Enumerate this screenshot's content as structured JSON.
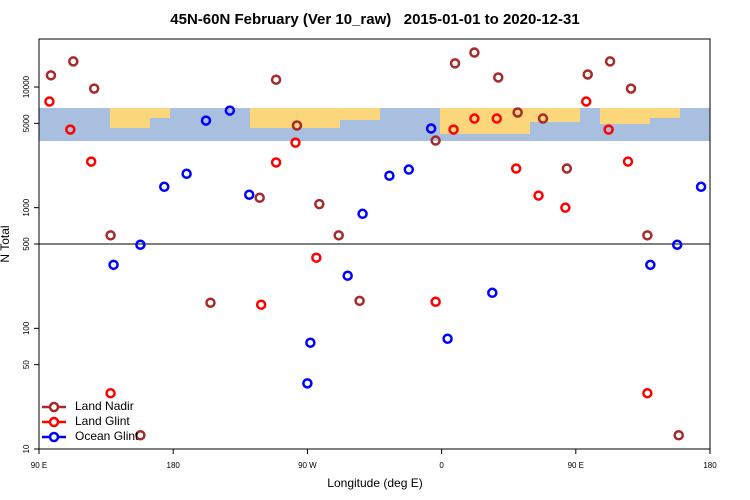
{
  "chart_data": {
    "type": "scatter",
    "title": "45N-60N February (Ver 10_raw)   2015-01-01 to 2020-12-31",
    "x_label": "Longitude (deg E)",
    "y_label": "N Total",
    "log_y": true,
    "xlim": [
      90,
      540
    ],
    "ylim": [
      10,
      25000
    ],
    "xticks": [
      {
        "value": 90,
        "label": "90 E"
      },
      180,
      {
        "value": 270,
        "label": "90 W"
      },
      {
        "value": 360,
        "label": "0"
      },
      {
        "value": 450,
        "label": "90 E"
      },
      {
        "value": 540,
        "label": "180"
      }
    ],
    "yticks": [
      10,
      50,
      100,
      500,
      1000,
      5000,
      10000
    ],
    "hline": 500,
    "legend": "lower left",
    "series": [
      {
        "name": "Land Nadir",
        "color": "#a52a2a",
        "x": [
          98,
          113,
          127,
          138,
          158,
          205,
          238,
          249,
          263,
          278,
          291,
          305,
          356,
          369,
          382,
          398,
          411,
          428,
          444,
          458,
          473,
          487,
          498,
          519
        ],
        "values": [
          12500,
          16300,
          9700,
          590,
          13,
          163,
          1210,
          11500,
          4800,
          1070,
          590,
          169,
          3600,
          15700,
          19300,
          12000,
          6150,
          5480,
          2110,
          12700,
          16300,
          9700,
          590,
          13
        ]
      },
      {
        "name": "Land Glint",
        "color": "#ff0000",
        "x": [
          97,
          111,
          125,
          138,
          239,
          249,
          262,
          276,
          356,
          368,
          382,
          397,
          410,
          425,
          443,
          457,
          472,
          485,
          498
        ],
        "values": [
          7580,
          4440,
          2410,
          29,
          157,
          2370,
          3460,
          385,
          166,
          4440,
          5480,
          5480,
          2110,
          1260,
          1000,
          7580,
          4440,
          2410,
          29
        ]
      },
      {
        "name": "Ocean Glint",
        "color": "#0000ff",
        "x": [
          140,
          158,
          174,
          189,
          202,
          218,
          231,
          270,
          272,
          297,
          307,
          325,
          338,
          353,
          364,
          394,
          500,
          518,
          534
        ],
        "values": [
          336,
          493,
          1490,
          1910,
          5270,
          6380,
          1280,
          35,
          76,
          273,
          890,
          1840,
          2070,
          4530,
          82,
          197,
          336,
          493,
          1490
        ]
      }
    ]
  }
}
